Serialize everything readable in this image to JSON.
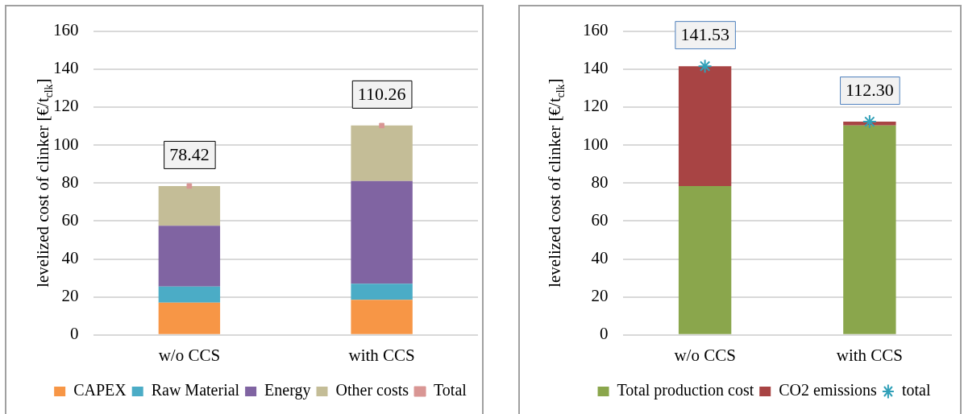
{
  "chart_data": [
    {
      "type": "bar",
      "stacked": true,
      "ylabel": "levelized cost of clinker [€/t$_{clk}$]",
      "categories": [
        "w/o CCS",
        "with CCS"
      ],
      "ylim": [
        0,
        160
      ],
      "yticks": [
        0,
        20,
        40,
        60,
        80,
        100,
        120,
        140,
        160
      ],
      "grid": "y",
      "legend": "bottom",
      "series": [
        {
          "name": "CAPEX",
          "color": "#f79646",
          "values": [
            17,
            18.5
          ]
        },
        {
          "name": "Raw Material",
          "color": "#4bacc6",
          "values": [
            8.5,
            8.5
          ]
        },
        {
          "name": "Energy",
          "color": "#8064a2",
          "values": [
            32,
            54
          ]
        },
        {
          "name": "Other costs",
          "color": "#c4bd97",
          "values": [
            20.9,
            29.3
          ]
        },
        {
          "name": "Total",
          "type": "scatter",
          "marker": "square",
          "color": "#d99694",
          "values": [
            78.42,
            110.26
          ],
          "value_labels": [
            "78.42",
            "110.26"
          ]
        }
      ]
    },
    {
      "type": "bar",
      "stacked": true,
      "ylabel": "levelized cost of clinker [€/t$_{clk}$]",
      "categories": [
        "w/o CCS",
        "with CCS"
      ],
      "ylim": [
        0,
        160
      ],
      "yticks": [
        0,
        20,
        40,
        60,
        80,
        100,
        120,
        140,
        160
      ],
      "grid": "y",
      "legend": "bottom",
      "series": [
        {
          "name": "Total production cost",
          "color": "#8aa64c",
          "values": [
            78.4,
            110.3
          ]
        },
        {
          "name": "CO2 emissions",
          "color": "#a84444",
          "values": [
            63.1,
            2
          ]
        },
        {
          "name": "total",
          "type": "scatter",
          "marker": "cross",
          "color": "#31a0b8",
          "values": [
            141.53,
            112.3
          ],
          "value_labels": [
            "141.53",
            "112.30"
          ]
        }
      ]
    }
  ]
}
